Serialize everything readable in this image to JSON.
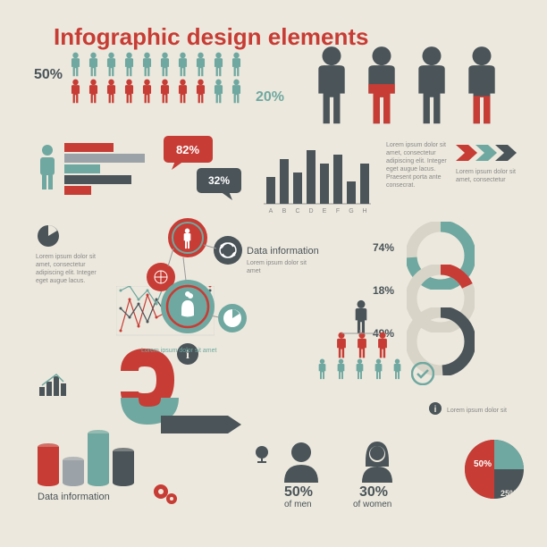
{
  "title": {
    "text": "Infographic design elements",
    "color": "#c73c34"
  },
  "colors": {
    "red": "#c73c34",
    "teal": "#6fa8a0",
    "grey": "#4a5459",
    "lightgrey": "#9ba3a8",
    "bg": "#ece8dd",
    "text": "#4a5459"
  },
  "row1": {
    "pct_left": "50%",
    "pct_right": "20%",
    "top_colors": [
      "#6fa8a0",
      "#6fa8a0",
      "#6fa8a0",
      "#6fa8a0",
      "#6fa8a0",
      "#6fa8a0",
      "#6fa8a0",
      "#6fa8a0",
      "#6fa8a0",
      "#6fa8a0"
    ],
    "bot_colors": [
      "#c73c34",
      "#c73c34",
      "#c73c34",
      "#c73c34",
      "#c73c34",
      "#c73c34",
      "#c73c34",
      "#c73c34",
      "#6fa8a0",
      "#6fa8a0"
    ]
  },
  "big_people": {
    "colors": [
      "#4a5459",
      "#c73c34",
      "#4a5459",
      "#c73c34"
    ],
    "fill_split": [
      0,
      0.5,
      1,
      0.35
    ]
  },
  "speech": {
    "a": "82%",
    "b": "32%",
    "a_bg": "#c73c34",
    "b_bg": "#4a5459"
  },
  "hbars": {
    "vals": [
      55,
      90,
      40,
      75,
      30
    ],
    "colors": [
      "#c73c34",
      "#9ba3a8",
      "#6fa8a0",
      "#4a5459",
      "#c73c34"
    ]
  },
  "vbars": {
    "vals": [
      30,
      50,
      35,
      60,
      45,
      55,
      25,
      45
    ],
    "labels": [
      "A",
      "B",
      "C",
      "D",
      "E",
      "F",
      "G",
      "H"
    ],
    "color": "#4a5459"
  },
  "arrows": {
    "colors": [
      "#c73c34",
      "#6fa8a0",
      "#4a5459"
    ],
    "text": "Lorem ipsum dolor sit amet, consectetur"
  },
  "circles": {
    "label": "Data information",
    "body": "Lorem ipsum dolor sit amet",
    "main": "#c73c34",
    "ring": "#6fa8a0",
    "sub": [
      "#4a5459",
      "#c73c34",
      "#6fa8a0"
    ]
  },
  "pie_small": {
    "color": "#4a5459",
    "text": "Lorem ipsum dolor sit amet, consectetur adipiscing elit. Integer eget augue lacus."
  },
  "line_chart": {
    "colors": [
      "#c73c34",
      "#4a5459",
      "#6fa8a0"
    ],
    "pts": [
      [
        5,
        40,
        10,
        45,
        20,
        25,
        50,
        30,
        45,
        60,
        55
      ],
      [
        30,
        20,
        35,
        15,
        40,
        25,
        30,
        45,
        40,
        35,
        50
      ],
      [
        50,
        55,
        40,
        50,
        35,
        60,
        15,
        40,
        25,
        40,
        30
      ]
    ]
  },
  "donuts": [
    {
      "pct": "74%",
      "val": 0.74,
      "color": "#6fa8a0"
    },
    {
      "pct": "18%",
      "val": 0.18,
      "color": "#c73c34"
    },
    {
      "pct": "49%",
      "val": 0.49,
      "color": "#4a5459"
    }
  ],
  "hierarchy": {
    "top": "#4a5459",
    "mid": [
      "#c73c34",
      "#c73c34",
      "#c73c34"
    ],
    "bot": [
      "#6fa8a0",
      "#6fa8a0",
      "#6fa8a0",
      "#6fa8a0",
      "#6fa8a0"
    ]
  },
  "ribbon": {
    "c1": "#c73c34",
    "c2": "#6fa8a0",
    "c3": "#4a5459",
    "text": "Lorem ipsum dolor sit amet"
  },
  "cyl": {
    "vals": [
      40,
      25,
      55,
      35
    ],
    "colors": [
      "#c73c34",
      "#9ba3a8",
      "#6fa8a0",
      "#4a5459"
    ],
    "label": "Data information"
  },
  "avatars": {
    "men_pct": "50%",
    "men_lbl": "of men",
    "women_pct": "30%",
    "women_lbl": "of women",
    "color": "#4a5459"
  },
  "pie_right": {
    "slices": [
      {
        "pct": "50%",
        "color": "#c73c34"
      },
      {
        "pct": "25%",
        "color": "#6fa8a0"
      }
    ],
    "base": "#4a5459",
    "text": "Lorem ipsum dolor sit"
  },
  "check": {
    "color": "#6fa8a0"
  },
  "lorem_block": "Lorem ipsum dolor sit amet, consectetur adipiscing elit. Integer eget augue lacus. Praesent porta ante consecrat."
}
